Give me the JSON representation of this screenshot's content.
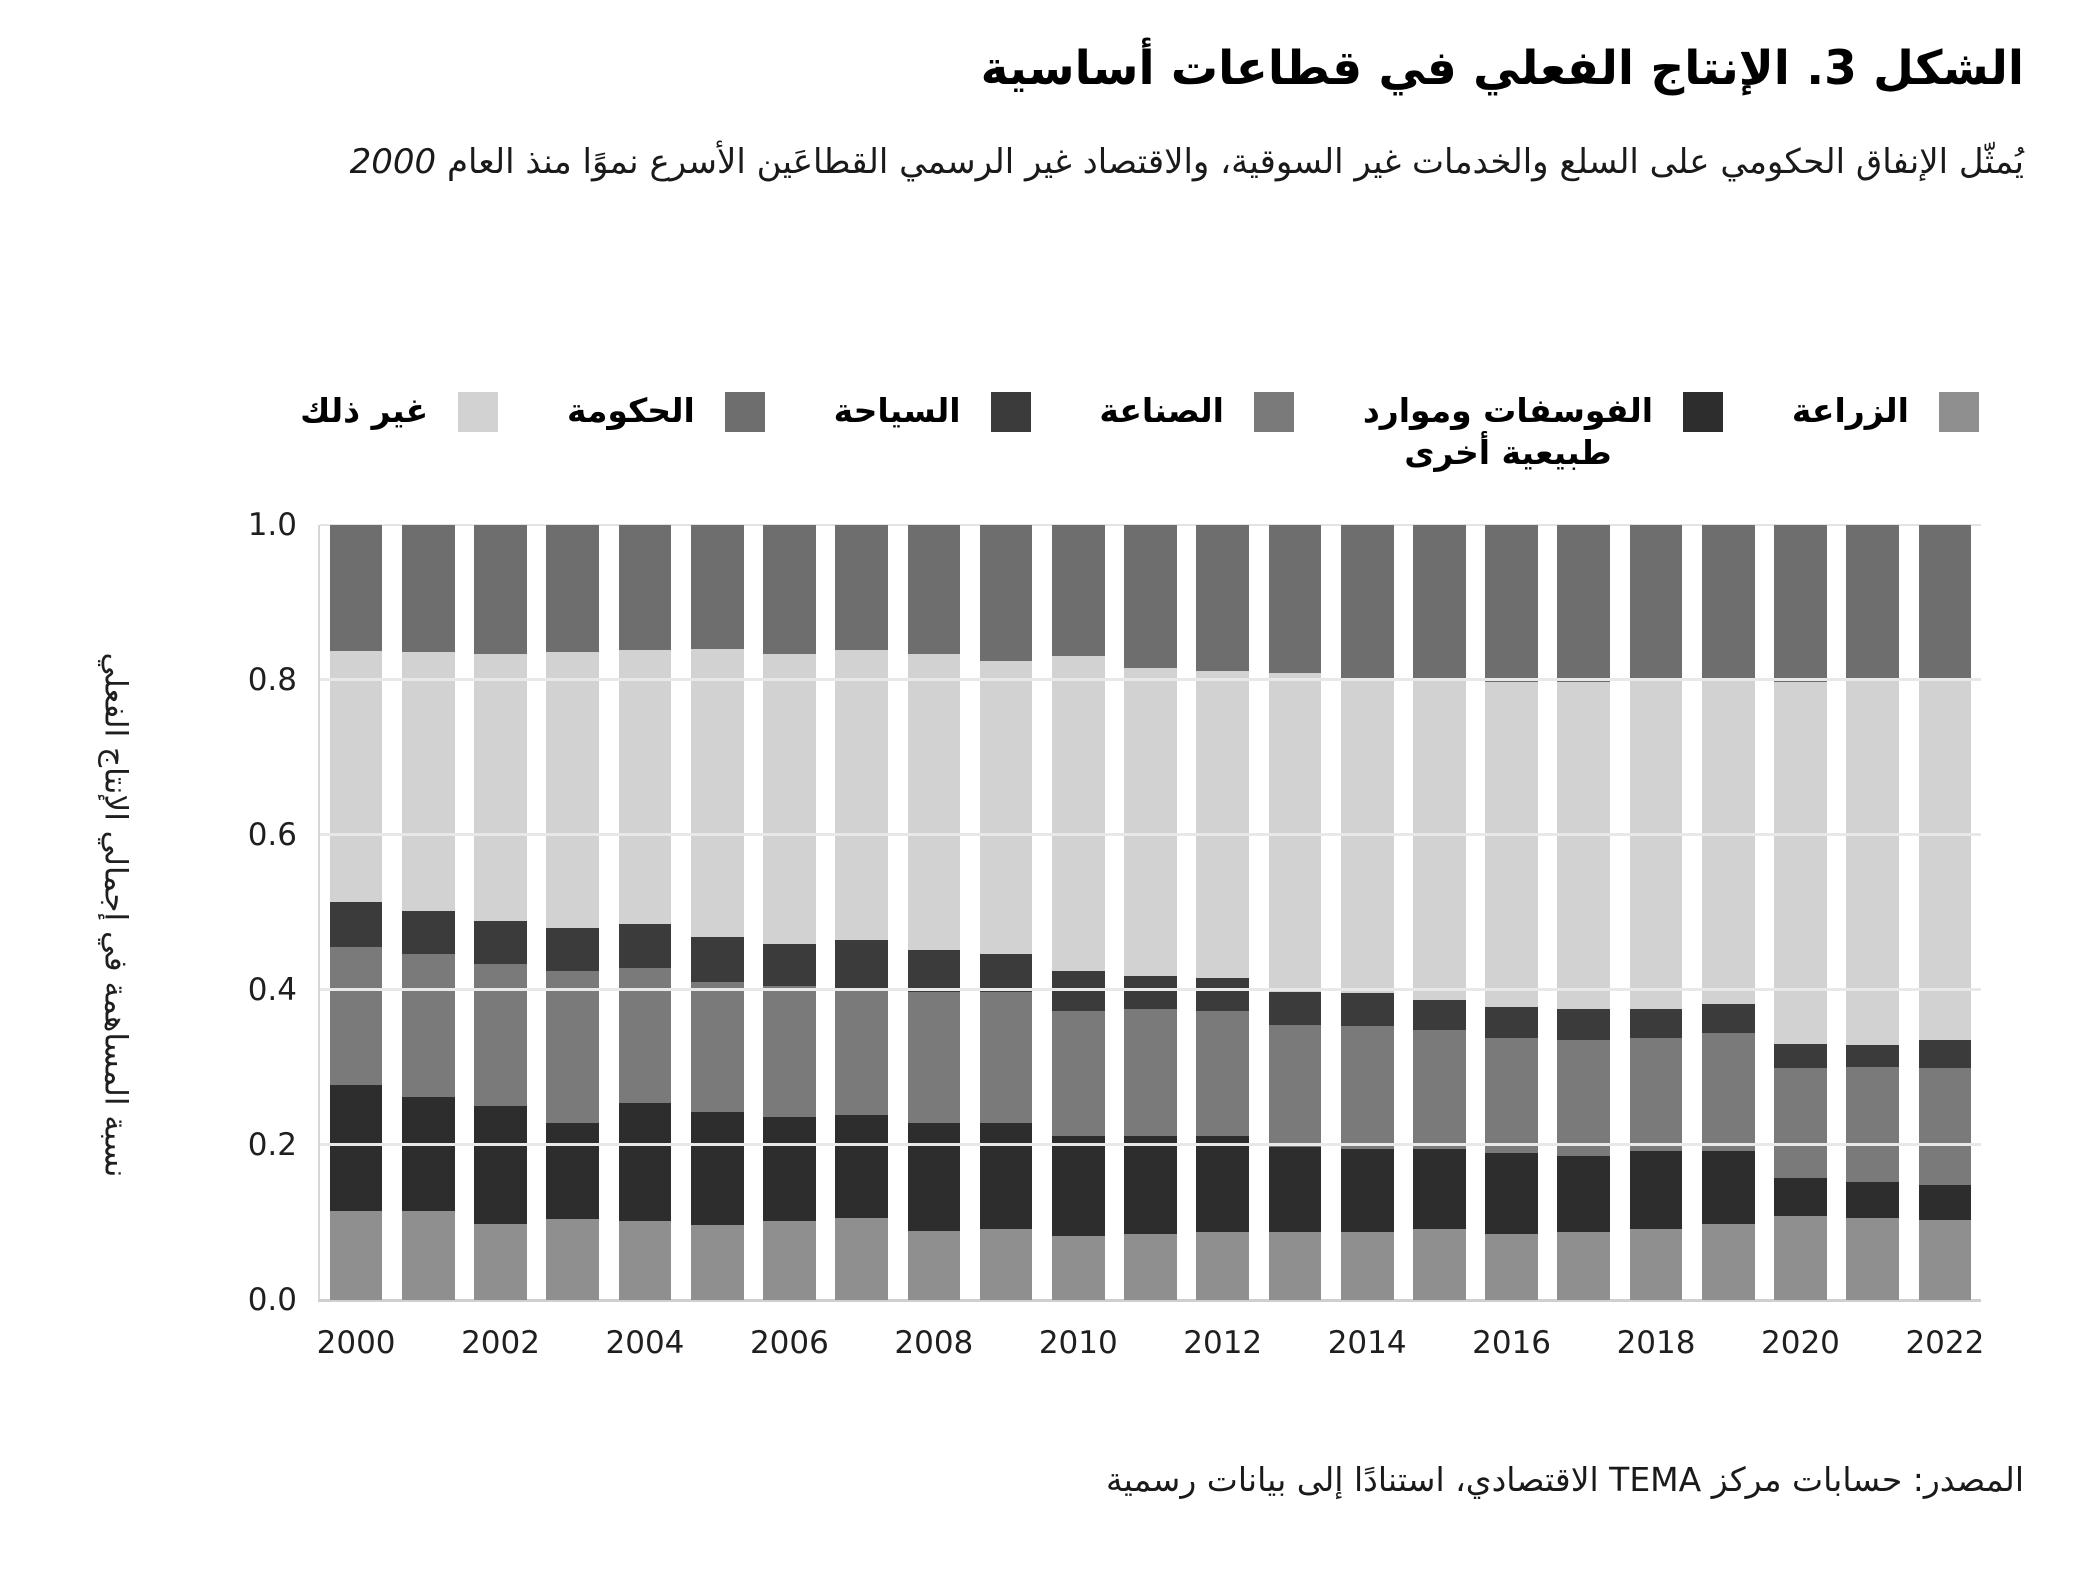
{
  "figure": {
    "title": "الشكل 3. الإنتاج الفعلي في قطاعات أساسية",
    "subtitle_text": "يُمثّل الإنفاق الحكومي على السلع والخدمات غير السوقية، والاقتصاد غير الرسمي القطاعَين الأسرع نموًا منذ العام ",
    "subtitle_year": "2000",
    "source": "المصدر: حسابات مركز TEMA الاقتصادي، استنادًا إلى بيانات رسمية"
  },
  "legend": {
    "items": [
      {
        "label": "الزراعة",
        "color": "#8f8f8f"
      },
      {
        "label": "الفوسفات وموارد\nطبيعية أخرى",
        "color": "#2d2d2d"
      },
      {
        "label": "الصناعة",
        "color": "#7a7a7a"
      },
      {
        "label": "السياحة",
        "color": "#3b3b3b"
      },
      {
        "label": "الحكومة",
        "color": "#6e6e6e"
      },
      {
        "label": "غير ذلك",
        "color": "#d2d2d2"
      }
    ]
  },
  "chart_data": {
    "type": "bar",
    "stacked": true,
    "title": "الشكل 3. الإنتاج الفعلي في قطاعات أساسية",
    "xlabel": "",
    "ylabel": "نسبة المساهمة في إجمالي الإنتاج الفعلي",
    "ylim": [
      0.0,
      1.0
    ],
    "y_ticks": [
      "0.0",
      "0.2",
      "0.4",
      "0.6",
      "0.8",
      "1.0"
    ],
    "x_tick_labels": [
      "2000",
      "2002",
      "2004",
      "2006",
      "2008",
      "2010",
      "2012",
      "2014",
      "2016",
      "2018",
      "2020",
      "2022"
    ],
    "grid": true,
    "legend_position": "top",
    "categories": [
      "2000",
      "2001",
      "2002",
      "2003",
      "2004",
      "2005",
      "2006",
      "2007",
      "2008",
      "2009",
      "2010",
      "2011",
      "2012",
      "2013",
      "2014",
      "2015",
      "2016",
      "2017",
      "2018",
      "2019",
      "2020",
      "2021",
      "2022"
    ],
    "series": [
      {
        "name": "الزراعة",
        "color": "#8f8f8f",
        "values": [
          0.115,
          0.115,
          0.098,
          0.105,
          0.102,
          0.097,
          0.102,
          0.106,
          0.089,
          0.091,
          0.083,
          0.085,
          0.088,
          0.088,
          0.088,
          0.091,
          0.085,
          0.088,
          0.091,
          0.098,
          0.109,
          0.106,
          0.103
        ]
      },
      {
        "name": "الفوسفات وموارد طبيعية أخرى",
        "color": "#2d2d2d",
        "values": [
          0.162,
          0.147,
          0.153,
          0.123,
          0.152,
          0.146,
          0.134,
          0.133,
          0.139,
          0.137,
          0.129,
          0.127,
          0.124,
          0.109,
          0.107,
          0.104,
          0.105,
          0.098,
          0.101,
          0.094,
          0.049,
          0.046,
          0.046
        ]
      },
      {
        "name": "الصناعة",
        "color": "#7a7a7a",
        "values": [
          0.179,
          0.185,
          0.183,
          0.197,
          0.174,
          0.167,
          0.169,
          0.162,
          0.17,
          0.17,
          0.161,
          0.163,
          0.161,
          0.158,
          0.158,
          0.153,
          0.148,
          0.15,
          0.146,
          0.152,
          0.141,
          0.149,
          0.15
        ]
      },
      {
        "name": "السياحة",
        "color": "#3b3b3b",
        "values": [
          0.058,
          0.055,
          0.055,
          0.055,
          0.057,
          0.058,
          0.055,
          0.064,
          0.054,
          0.048,
          0.052,
          0.043,
          0.042,
          0.043,
          0.043,
          0.039,
          0.04,
          0.039,
          0.037,
          0.038,
          0.032,
          0.028,
          0.036
        ]
      },
      {
        "name": "غير ذلك",
        "color": "#d2d2d2",
        "values": [
          0.324,
          0.334,
          0.345,
          0.356,
          0.354,
          0.372,
          0.374,
          0.374,
          0.382,
          0.378,
          0.406,
          0.398,
          0.397,
          0.411,
          0.404,
          0.413,
          0.419,
          0.422,
          0.425,
          0.418,
          0.466,
          0.47,
          0.464
        ]
      },
      {
        "name": "الحكومة",
        "color": "#6e6e6e",
        "values": [
          0.162,
          0.164,
          0.166,
          0.164,
          0.161,
          0.16,
          0.166,
          0.161,
          0.166,
          0.176,
          0.169,
          0.184,
          0.188,
          0.191,
          0.2,
          0.2,
          0.203,
          0.203,
          0.2,
          0.2,
          0.203,
          0.201,
          0.201
        ]
      }
    ]
  }
}
